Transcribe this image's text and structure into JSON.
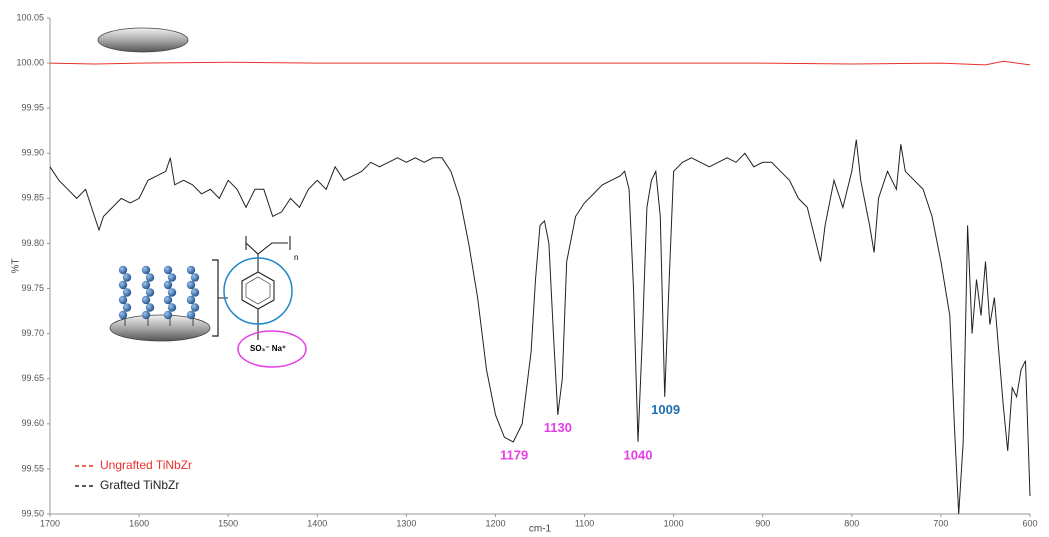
{
  "chart_data": {
    "type": "line",
    "x_label": "cm-1",
    "y_label": "%T",
    "xlim": [
      1700,
      600
    ],
    "ylim": [
      99.5,
      100.05
    ],
    "xticks": [
      1700,
      1600,
      1500,
      1400,
      1300,
      1200,
      1100,
      1000,
      900,
      800,
      700,
      600
    ],
    "yticks": [
      {
        "value": 99.5,
        "label": "99.50"
      },
      99.55,
      {
        "value": 99.6,
        "label": "99.60"
      },
      99.65,
      {
        "value": 99.7,
        "label": "99.70"
      },
      99.75,
      {
        "value": 99.8,
        "label": "99.80"
      },
      99.85,
      {
        "value": 99.9,
        "label": "99.90"
      },
      99.95,
      {
        "value": 100,
        "label": "100.00"
      },
      100.05
    ],
    "series": [
      {
        "name": "Ungrafted TiNbZr",
        "color": "#e8322b",
        "x": [
          1700,
          1650,
          1600,
          1500,
          1400,
          1300,
          1200,
          1100,
          1000,
          900,
          800,
          700,
          650,
          630,
          600
        ],
        "values": [
          100.0,
          99.999,
          100.0,
          100.001,
          100.0,
          100.0,
          100.0,
          100.0,
          100.0,
          100.0,
          99.999,
          100.0,
          99.998,
          100.002,
          99.998
        ]
      },
      {
        "name": "Grafted TiNbZr",
        "color": "#222222",
        "x": [
          1700,
          1690,
          1680,
          1670,
          1660,
          1650,
          1645,
          1640,
          1630,
          1620,
          1610,
          1600,
          1590,
          1580,
          1570,
          1565,
          1560,
          1550,
          1540,
          1530,
          1520,
          1510,
          1500,
          1490,
          1480,
          1470,
          1460,
          1450,
          1440,
          1430,
          1420,
          1410,
          1400,
          1390,
          1380,
          1370,
          1360,
          1350,
          1340,
          1330,
          1320,
          1310,
          1300,
          1290,
          1280,
          1270,
          1260,
          1250,
          1240,
          1230,
          1220,
          1210,
          1200,
          1190,
          1180,
          1170,
          1160,
          1155,
          1150,
          1145,
          1140,
          1135,
          1130,
          1125,
          1120,
          1110,
          1100,
          1090,
          1080,
          1070,
          1060,
          1055,
          1050,
          1045,
          1040,
          1035,
          1030,
          1025,
          1020,
          1015,
          1010,
          1005,
          1000,
          990,
          980,
          970,
          960,
          950,
          940,
          930,
          920,
          910,
          900,
          890,
          880,
          870,
          860,
          850,
          840,
          835,
          830,
          820,
          810,
          800,
          795,
          790,
          780,
          775,
          770,
          760,
          750,
          745,
          740,
          730,
          720,
          710,
          700,
          690,
          685,
          680,
          675,
          670,
          665,
          660,
          655,
          650,
          645,
          640,
          635,
          630,
          625,
          620,
          615,
          610,
          605,
          600
        ],
        "values": [
          99.885,
          99.87,
          99.86,
          99.85,
          99.86,
          99.83,
          99.815,
          99.83,
          99.84,
          99.85,
          99.845,
          99.85,
          99.87,
          99.875,
          99.88,
          99.895,
          99.865,
          99.87,
          99.865,
          99.855,
          99.86,
          99.85,
          99.87,
          99.86,
          99.84,
          99.86,
          99.86,
          99.83,
          99.835,
          99.85,
          99.84,
          99.86,
          99.87,
          99.86,
          99.885,
          99.87,
          99.875,
          99.88,
          99.89,
          99.885,
          99.89,
          99.895,
          99.89,
          99.895,
          99.89,
          99.895,
          99.895,
          99.88,
          99.85,
          99.8,
          99.74,
          99.66,
          99.61,
          99.585,
          99.58,
          99.6,
          99.68,
          99.76,
          99.82,
          99.825,
          99.8,
          99.7,
          99.61,
          99.65,
          99.78,
          99.83,
          99.845,
          99.855,
          99.865,
          99.87,
          99.875,
          99.88,
          99.86,
          99.75,
          99.58,
          99.7,
          99.84,
          99.87,
          99.88,
          99.83,
          99.63,
          99.76,
          99.88,
          99.89,
          99.895,
          99.89,
          99.885,
          99.89,
          99.895,
          99.89,
          99.9,
          99.885,
          99.89,
          99.89,
          99.88,
          99.87,
          99.85,
          99.84,
          99.8,
          99.78,
          99.82,
          99.87,
          99.84,
          99.88,
          99.915,
          99.87,
          99.82,
          99.79,
          99.85,
          99.88,
          99.86,
          99.91,
          99.88,
          99.87,
          99.86,
          99.83,
          99.78,
          99.72,
          99.6,
          99.5,
          99.58,
          99.82,
          99.7,
          99.76,
          99.72,
          99.78,
          99.71,
          99.74,
          99.68,
          99.62,
          99.57,
          99.64,
          99.63,
          99.66,
          99.67,
          99.52
        ]
      }
    ],
    "annotations": [
      {
        "text": "1179",
        "color": "#e63ee6"
      },
      {
        "text": "1130",
        "color": "#e63ee6"
      },
      {
        "text": "1040",
        "color": "#e63ee6"
      },
      {
        "text": "1009",
        "color": "#1f6fb5"
      }
    ],
    "inset_labels": [
      "n",
      "SO₃⁻  Na⁺"
    ]
  }
}
